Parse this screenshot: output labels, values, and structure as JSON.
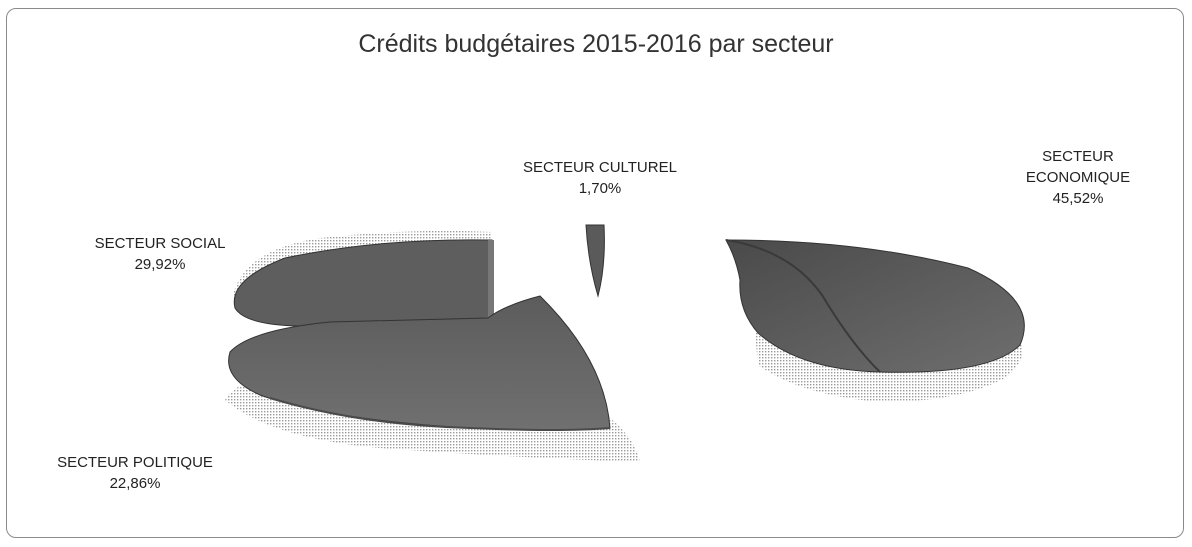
{
  "chart_data": {
    "type": "pie",
    "title": "Crédits budgétaires  2015-2016 par secteur",
    "slices": [
      {
        "label": "SECTEUR ECONOMIQUE",
        "value": 45.52,
        "display": "45,52%"
      },
      {
        "label": "SECTEUR CULTUREL",
        "value": 1.7,
        "display": "1,70%"
      },
      {
        "label": "SECTEUR SOCIAL",
        "value": 29.92,
        "display": "29,92%"
      },
      {
        "label": "SECTEUR POLITIQUE",
        "value": 22.86,
        "display": "22,86%"
      }
    ],
    "style": "3d-exploded"
  }
}
